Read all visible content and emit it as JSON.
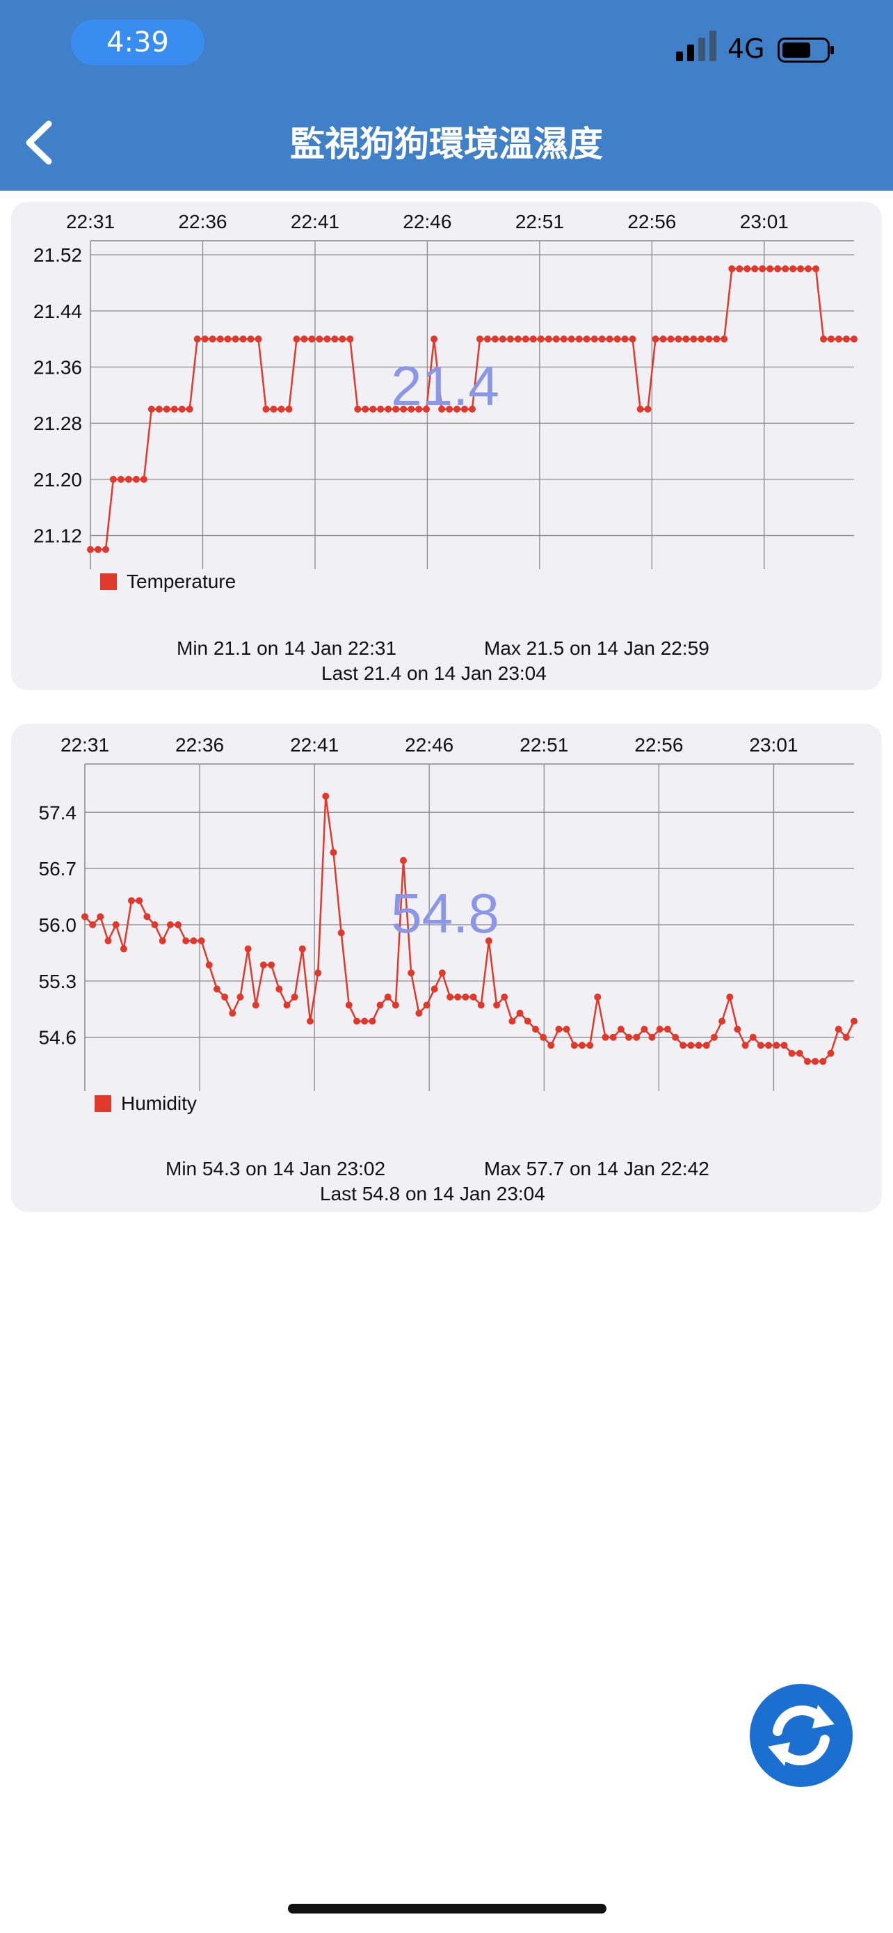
{
  "status_bar": {
    "time": "4:39",
    "network": "4G"
  },
  "header": {
    "title": "監視狗狗環境溫濕度",
    "accent": "#4080c8"
  },
  "icons": {
    "back": "chevron-left-icon",
    "refresh": "refresh-icon",
    "signal": "signal-bars-icon",
    "battery": "battery-icon"
  },
  "temperature": {
    "legend": "Temperature",
    "current": "21.4",
    "stats": {
      "min": "Min 21.1 on 14 Jan 22:31",
      "max": "Max 21.5 on 14 Jan 22:59",
      "last": "Last 21.4 on 14 Jan 23:04"
    }
  },
  "humidity": {
    "legend": "Humidity",
    "current": "54.8",
    "stats": {
      "min": "Min 54.3 on 14 Jan 23:02",
      "max": "Max 57.7 on 14 Jan 22:42",
      "last": "Last 54.8 on 14 Jan 23:04"
    }
  },
  "chart_data": [
    {
      "type": "line",
      "series": [
        {
          "name": "Temperature",
          "color": "#e0392b",
          "values": [
            21.1,
            21.1,
            21.1,
            21.2,
            21.2,
            21.2,
            21.2,
            21.2,
            21.3,
            21.3,
            21.3,
            21.3,
            21.3,
            21.3,
            21.4,
            21.4,
            21.4,
            21.4,
            21.4,
            21.4,
            21.4,
            21.4,
            21.4,
            21.3,
            21.3,
            21.3,
            21.3,
            21.4,
            21.4,
            21.4,
            21.4,
            21.4,
            21.4,
            21.4,
            21.4,
            21.3,
            21.3,
            21.3,
            21.3,
            21.3,
            21.3,
            21.3,
            21.3,
            21.3,
            21.3,
            21.4,
            21.3,
            21.3,
            21.3,
            21.3,
            21.3,
            21.4,
            21.4,
            21.4,
            21.4,
            21.4,
            21.4,
            21.4,
            21.4,
            21.4,
            21.4,
            21.4,
            21.4,
            21.4,
            21.4,
            21.4,
            21.4,
            21.4,
            21.4,
            21.4,
            21.4,
            21.4,
            21.3,
            21.3,
            21.4,
            21.4,
            21.4,
            21.4,
            21.4,
            21.4,
            21.4,
            21.4,
            21.4,
            21.4,
            21.5,
            21.5,
            21.5,
            21.5,
            21.5,
            21.5,
            21.5,
            21.5,
            21.5,
            21.5,
            21.5,
            21.5,
            21.4,
            21.4,
            21.4,
            21.4,
            21.4
          ]
        }
      ],
      "x_tick_labels": [
        "22:31",
        "22:36",
        "22:41",
        "22:46",
        "22:51",
        "22:56",
        "23:01"
      ],
      "y_tick_labels": [
        "21.52",
        "21.44",
        "21.36",
        "21.28",
        "21.20",
        "21.12"
      ],
      "ylim": [
        21.07,
        21.54
      ],
      "xlim_minutes_from_first_tick": [
        0,
        34
      ],
      "grid": true,
      "legend_position": "bottom-left"
    },
    {
      "type": "line",
      "series": [
        {
          "name": "Humidity",
          "color": "#e0392b",
          "values": [
            56.1,
            56.0,
            56.1,
            55.8,
            56.0,
            55.7,
            56.3,
            56.3,
            56.1,
            56.0,
            55.8,
            56.0,
            56.0,
            55.8,
            55.8,
            55.8,
            55.5,
            55.2,
            55.1,
            54.9,
            55.1,
            55.7,
            55.0,
            55.5,
            55.5,
            55.2,
            55.0,
            55.1,
            55.7,
            54.8,
            55.4,
            57.6,
            56.9,
            55.9,
            55.0,
            54.8,
            54.8,
            54.8,
            55.0,
            55.1,
            55.0,
            56.8,
            55.4,
            54.9,
            55.0,
            55.2,
            55.4,
            55.1,
            55.1,
            55.1,
            55.1,
            55.0,
            55.8,
            55.0,
            55.1,
            54.8,
            54.9,
            54.8,
            54.7,
            54.6,
            54.5,
            54.7,
            54.7,
            54.5,
            54.5,
            54.5,
            55.1,
            54.6,
            54.6,
            54.7,
            54.6,
            54.6,
            54.7,
            54.6,
            54.7,
            54.7,
            54.6,
            54.5,
            54.5,
            54.5,
            54.5,
            54.6,
            54.8,
            55.1,
            54.7,
            54.5,
            54.6,
            54.5,
            54.5,
            54.5,
            54.5,
            54.4,
            54.4,
            54.3,
            54.3,
            54.3,
            54.4,
            54.7,
            54.6,
            54.8
          ]
        }
      ],
      "x_tick_labels": [
        "22:31",
        "22:36",
        "22:41",
        "22:46",
        "22:51",
        "22:56",
        "23:01"
      ],
      "y_tick_labels": [
        "57.4",
        "56.7",
        "56.0",
        "55.3",
        "54.6"
      ],
      "ylim": [
        54.0,
        58.0
      ],
      "xlim_minutes_from_first_tick": [
        0,
        33.5
      ],
      "grid": true,
      "legend_position": "bottom-left"
    }
  ]
}
